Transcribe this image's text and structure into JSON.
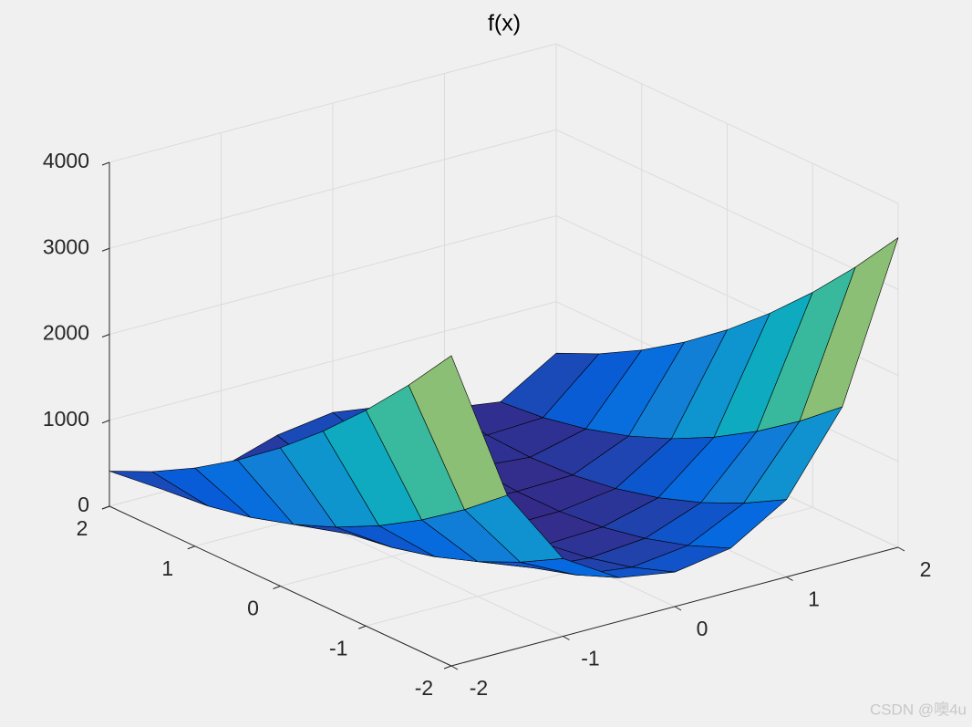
{
  "chart_data": {
    "type": "surface",
    "title": "f(x)",
    "x": [
      -2,
      -1.5,
      -1,
      -0.5,
      0,
      0.5,
      1,
      1.5,
      2
    ],
    "y": [
      -2,
      -1.5,
      -1,
      -0.5,
      0,
      0.5,
      1,
      1.5,
      2
    ],
    "z": [
      [
        3609,
        1812.5,
        904,
        508.5,
        401,
        506.5,
        900,
        1806.5,
        3601
      ],
      [
        3034,
        1412.5,
        629,
        308.5,
        226,
        306.5,
        625,
        1406.5,
        3026
      ],
      [
        2509,
        1062.5,
        404,
        158.5,
        101,
        156.5,
        400,
        1056.5,
        2501
      ],
      [
        2034,
        762.5,
        229,
        58.5,
        26,
        56.5,
        225,
        756.5,
        2026
      ],
      [
        1609,
        512.5,
        104,
        8.5,
        1,
        6.5,
        100,
        506.5,
        1601
      ],
      [
        1234,
        312.5,
        29,
        8.5,
        26,
        6.5,
        25,
        306.5,
        1226
      ],
      [
        909,
        162.5,
        4,
        58.5,
        101,
        56.5,
        0,
        156.5,
        901
      ],
      [
        634,
        62.5,
        29,
        158.5,
        226,
        156.5,
        25,
        56.5,
        626
      ],
      [
        409,
        12.5,
        104,
        308.5,
        401,
        306.5,
        100,
        6.5,
        401
      ]
    ],
    "xlim": [
      -2,
      2
    ],
    "ylim": [
      -2,
      2
    ],
    "zlim": [
      0,
      4000
    ],
    "xticks": [
      -2,
      -1,
      0,
      1,
      2
    ],
    "yticks": [
      -2,
      -1,
      0,
      1,
      2
    ],
    "zticks": [
      0,
      1000,
      2000,
      3000,
      4000
    ],
    "grid": true,
    "colormap": [
      "#352a87",
      "#0363e1",
      "#1485d4",
      "#06a7c6",
      "#38b99e",
      "#92bf73",
      "#d9ba56",
      "#fcce2e",
      "#f9fb0e"
    ],
    "edge_color": "#000000"
  },
  "watermark": "CSDN @噢4u"
}
